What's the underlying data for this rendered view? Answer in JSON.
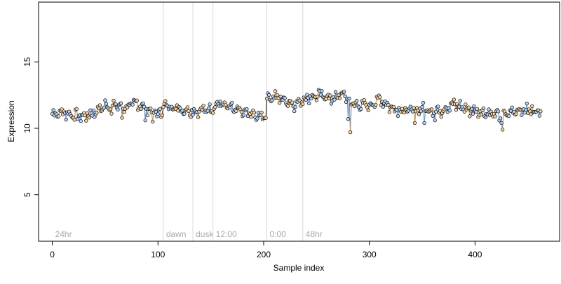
{
  "chart_data": {
    "type": "scatter",
    "title": "",
    "xlabel": "Sample index",
    "ylabel": "Expression",
    "xlim": [
      -13,
      480
    ],
    "ylim": [
      1.5,
      19.5
    ],
    "xticks": [
      0,
      100,
      200,
      300,
      400
    ],
    "yticks": [
      5,
      10,
      15
    ],
    "grid": false,
    "connect_points": true,
    "colors": {
      "line_light_wave": "#6fa0d8",
      "line_dark_wave": "#c89a6a",
      "point_light_fill": "#b9d3f2",
      "point_dark_fill": "#f2d2a8",
      "point_stroke": "#000000",
      "region_line": "#d9d9d9",
      "region_label": "#a8a8a8"
    },
    "regions": [
      {
        "label": "24hr",
        "start": 0
      },
      {
        "label": "dawn",
        "start": 105
      },
      {
        "label": "dusk",
        "start": 133
      },
      {
        "label": "12:00",
        "start": 152
      },
      {
        "label": "0:00",
        "start": 203
      },
      {
        "label": "48hr",
        "start": 237
      }
    ],
    "samples": [
      {
        "from": 0,
        "to": 104,
        "anchors": [
          [
            0,
            11.1
          ],
          [
            10,
            11.2
          ],
          [
            20,
            11.0
          ],
          [
            30,
            10.9
          ],
          [
            40,
            11.2
          ],
          [
            50,
            11.7
          ],
          [
            60,
            11.7
          ],
          [
            70,
            11.6
          ],
          [
            80,
            11.9
          ],
          [
            90,
            11.4
          ],
          [
            100,
            11.2
          ],
          [
            104,
            11.3
          ]
        ]
      },
      {
        "from": 105,
        "to": 202,
        "anchors": [
          [
            105,
            11.7
          ],
          [
            115,
            11.6
          ],
          [
            125,
            11.4
          ],
          [
            133,
            11.3
          ],
          [
            140,
            11.3
          ],
          [
            150,
            11.5
          ],
          [
            158,
            11.9
          ],
          [
            165,
            11.6
          ],
          [
            175,
            11.3
          ],
          [
            185,
            11.1
          ],
          [
            195,
            10.9
          ],
          [
            202,
            11.0
          ]
        ]
      },
      {
        "from": 203,
        "to": 462,
        "anchors": [
          [
            203,
            12.3
          ],
          [
            210,
            12.4
          ],
          [
            220,
            12.1
          ],
          [
            230,
            11.8
          ],
          [
            240,
            12.3
          ],
          [
            255,
            12.5
          ],
          [
            265,
            12.2
          ],
          [
            275,
            12.6
          ],
          [
            285,
            11.8
          ],
          [
            300,
            11.7
          ],
          [
            310,
            12.2
          ],
          [
            320,
            11.6
          ],
          [
            335,
            11.3
          ],
          [
            350,
            11.5
          ],
          [
            365,
            11.3
          ],
          [
            380,
            11.8
          ],
          [
            395,
            11.4
          ],
          [
            410,
            11.2
          ],
          [
            425,
            10.9
          ],
          [
            440,
            11.4
          ],
          [
            462,
            11.3
          ]
        ]
      }
    ],
    "outliers": [
      [
        56,
        11.1
      ],
      [
        66,
        10.8
      ],
      [
        88,
        10.6
      ],
      [
        95,
        10.5
      ],
      [
        99,
        10.9
      ],
      [
        280,
        10.7
      ],
      [
        282,
        9.7
      ],
      [
        343,
        10.4
      ],
      [
        352,
        10.4
      ],
      [
        362,
        10.6
      ],
      [
        395,
        10.9
      ],
      [
        425,
        10.4
      ],
      [
        426,
        9.9
      ]
    ]
  }
}
